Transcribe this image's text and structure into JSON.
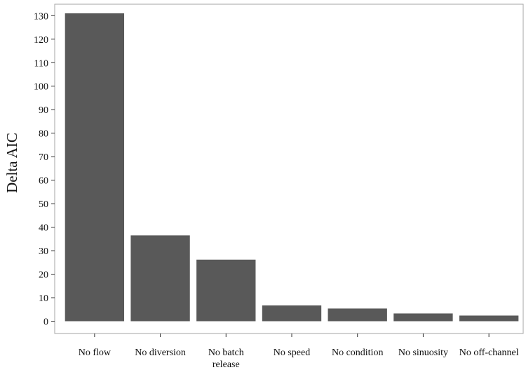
{
  "chart_data": {
    "type": "bar",
    "ylabel": "Delta AIC",
    "xlabel": "",
    "categories": [
      [
        "No flow"
      ],
      [
        "No diversion"
      ],
      [
        "No batch",
        "release"
      ],
      [
        "No speed"
      ],
      [
        "No condition"
      ],
      [
        "No sinuosity"
      ],
      [
        "No off-channel"
      ]
    ],
    "values": [
      131,
      36.5,
      26.2,
      6.7,
      5.4,
      3.3,
      2.4
    ],
    "ylim": [
      -3,
      135
    ],
    "yticks": [
      0,
      10,
      20,
      30,
      40,
      50,
      60,
      70,
      80,
      90,
      100,
      110,
      120,
      130
    ],
    "grid": false,
    "colors": {
      "bar": "#595959",
      "frame": "#a6a6a6",
      "tick": "#333333"
    }
  }
}
